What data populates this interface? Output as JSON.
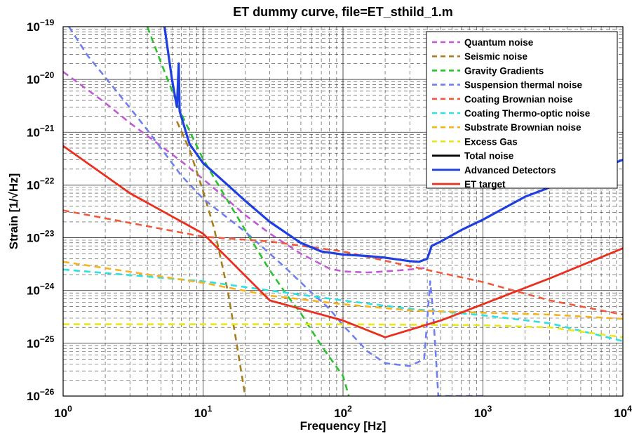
{
  "chart_data": {
    "type": "line",
    "title": "ET dummy curve, file=ET_sthild_1.m",
    "xlabel": "Frequency [Hz]",
    "ylabel": "Strain [1/√Hz]",
    "xscale": "log",
    "yscale": "log",
    "xlim": [
      1,
      10000
    ],
    "ylim": [
      1e-26,
      1e-19
    ],
    "grid": "major and minor, dashed",
    "legend_position": "top-right",
    "xticks": [
      {
        "value": 1,
        "base": "10",
        "exp": "0"
      },
      {
        "value": 10,
        "base": "10",
        "exp": "1"
      },
      {
        "value": 100,
        "base": "10",
        "exp": "2"
      },
      {
        "value": 1000,
        "base": "10",
        "exp": "3"
      },
      {
        "value": 10000,
        "base": "10",
        "exp": "4"
      }
    ],
    "yticks": [
      {
        "value": 1e-26,
        "base": "10",
        "exp": "−26"
      },
      {
        "value": 1e-25,
        "base": "10",
        "exp": "−25"
      },
      {
        "value": 1e-24,
        "base": "10",
        "exp": "−24"
      },
      {
        "value": 1e-23,
        "base": "10",
        "exp": "−23"
      },
      {
        "value": 1e-22,
        "base": "10",
        "exp": "−22"
      },
      {
        "value": 1e-21,
        "base": "10",
        "exp": "−21"
      },
      {
        "value": 1e-20,
        "base": "10",
        "exp": "−20"
      },
      {
        "value": 1e-19,
        "base": "10",
        "exp": "−19"
      }
    ],
    "series": [
      {
        "name": "Quantum noise",
        "color": "#c25ad6",
        "dash": true,
        "points": [
          [
            1,
            1.4e-20
          ],
          [
            2,
            3.6e-21
          ],
          [
            3,
            1.5e-21
          ],
          [
            5,
            5.5e-22
          ],
          [
            7,
            2.8e-22
          ],
          [
            10,
            1.3e-22
          ],
          [
            20,
            2.7e-23
          ],
          [
            30,
            1.2e-23
          ],
          [
            50,
            5e-24
          ],
          [
            80,
            2.6e-24
          ],
          [
            100,
            2.3e-24
          ],
          [
            150,
            2.2e-24
          ],
          [
            200,
            2.3e-24
          ],
          [
            300,
            2.5e-24
          ],
          [
            400,
            2.7e-24
          ]
        ]
      },
      {
        "name": "Seismic noise",
        "color": "#a97d1e",
        "dash": true,
        "points": [
          [
            6.5,
            1.6e-21
          ],
          [
            8,
            4.7e-22
          ],
          [
            10,
            7.7e-23
          ],
          [
            12,
            1.5e-23
          ],
          [
            15,
            1e-24
          ],
          [
            17,
            1.4e-25
          ],
          [
            20,
            1e-26
          ]
        ]
      },
      {
        "name": "Gravity Gradients",
        "color": "#2bc22b",
        "dash": true,
        "points": [
          [
            4,
            1e-19
          ],
          [
            5,
            2.1e-20
          ],
          [
            7,
            2.2e-21
          ],
          [
            10,
            3.1e-22
          ],
          [
            15,
            5e-23
          ],
          [
            20,
            1.4e-23
          ],
          [
            30,
            2.4e-24
          ],
          [
            40,
            8e-25
          ],
          [
            50,
            3.7e-25
          ],
          [
            70,
            9e-26
          ],
          [
            100,
            2.4e-26
          ],
          [
            110,
            1e-26
          ]
        ]
      },
      {
        "name": "Suspension thermal noise",
        "color": "#6f7ff0",
        "dash": true,
        "points": [
          [
            1.1,
            1e-19
          ],
          [
            1.5,
            2.8e-20
          ],
          [
            2,
            1.1e-20
          ],
          [
            3,
            2.9e-21
          ],
          [
            4,
            1.1e-21
          ],
          [
            5,
            5e-22
          ],
          [
            6,
            2.6e-22
          ],
          [
            7,
            1.5e-22
          ],
          [
            10,
            5.5e-23
          ],
          [
            20,
            1.3e-23
          ],
          [
            30,
            5e-24
          ],
          [
            40,
            2.5e-24
          ],
          [
            60,
            9e-25
          ],
          [
            80,
            4.5e-25
          ],
          [
            100,
            2.2e-25
          ],
          [
            150,
            7e-26
          ],
          [
            200,
            4.2e-26
          ],
          [
            300,
            3.7e-26
          ],
          [
            380,
            5e-26
          ],
          [
            420,
            1.5e-24
          ],
          [
            440,
            4e-25
          ],
          [
            480,
            1e-26
          ],
          [
            1000,
            1e-26
          ]
        ]
      },
      {
        "name": "Coating Brownian noise",
        "color": "#f05a3a",
        "dash": true,
        "points": [
          [
            1,
            3.3e-23
          ],
          [
            10,
            1.05e-23
          ],
          [
            30,
            8.5e-24
          ],
          [
            100,
            5.5e-24
          ],
          [
            300,
            2.9e-24
          ],
          [
            1000,
            1.45e-24
          ],
          [
            3000,
            6.5e-25
          ],
          [
            10000,
            3.5e-25
          ]
        ]
      },
      {
        "name": "Coating Thermo-optic noise",
        "color": "#2ee0e0",
        "dash": true,
        "points": [
          [
            1,
            2.5e-24
          ],
          [
            10,
            1.5e-24
          ],
          [
            30,
            1e-24
          ],
          [
            100,
            6.5e-25
          ],
          [
            300,
            4.5e-25
          ],
          [
            1000,
            3.4e-25
          ],
          [
            3000,
            2.4e-25
          ],
          [
            10000,
            1.1e-25
          ]
        ]
      },
      {
        "name": "Substrate Brownian noise",
        "color": "#f7b21e",
        "dash": true,
        "points": [
          [
            1,
            3.5e-24
          ],
          [
            10,
            1.4e-24
          ],
          [
            30,
            8e-25
          ],
          [
            100,
            5.5e-25
          ],
          [
            300,
            4.2e-25
          ],
          [
            1000,
            3.8e-25
          ],
          [
            3000,
            3.5e-25
          ],
          [
            10000,
            2.9e-25
          ]
        ]
      },
      {
        "name": "Excess Gas",
        "color": "#e8e81a",
        "dash": true,
        "points": [
          [
            1,
            2.3e-25
          ],
          [
            100,
            2.3e-25
          ],
          [
            1000,
            2.2e-25
          ],
          [
            3000,
            2e-25
          ],
          [
            10000,
            1.3e-25
          ]
        ]
      },
      {
        "name": "Total noise",
        "color": "#000000",
        "dash": false,
        "points": []
      },
      {
        "name": "Advanced Detectors",
        "color": "#1f3fe0",
        "dash": false,
        "width": 3.2,
        "points": [
          [
            5.3,
            1e-19
          ],
          [
            6,
            1e-20
          ],
          [
            6.5,
            3e-21
          ],
          [
            6.7,
            2e-20
          ],
          [
            6.8,
            2.5e-21
          ],
          [
            8,
            6e-22
          ],
          [
            10,
            2.6e-22
          ],
          [
            15,
            1e-22
          ],
          [
            20,
            5e-23
          ],
          [
            30,
            2e-23
          ],
          [
            50,
            8e-24
          ],
          [
            70,
            5.5e-24
          ],
          [
            100,
            4.8e-24
          ],
          [
            150,
            4.5e-24
          ],
          [
            200,
            4.2e-24
          ],
          [
            300,
            3.6e-24
          ],
          [
            350,
            3.5e-24
          ],
          [
            400,
            4e-24
          ],
          [
            430,
            7e-24
          ],
          [
            500,
            8.5e-24
          ],
          [
            700,
            1.4e-23
          ],
          [
            1000,
            2.2e-23
          ],
          [
            2000,
            6e-23
          ],
          [
            5000,
            1.5e-22
          ],
          [
            10000,
            3e-22
          ]
        ]
      },
      {
        "name": "ET target",
        "color": "#ea2f1e",
        "dash": false,
        "width": 2.8,
        "points": [
          [
            1,
            5.5e-22
          ],
          [
            3,
            7e-23
          ],
          [
            10,
            1.2e-23
          ],
          [
            30,
            6.5e-25
          ],
          [
            100,
            2.7e-25
          ],
          [
            200,
            1.3e-25
          ],
          [
            500,
            2.7e-25
          ],
          [
            1000,
            5.5e-25
          ],
          [
            3000,
            1.7e-24
          ],
          [
            10000,
            6.3e-24
          ]
        ]
      }
    ]
  }
}
